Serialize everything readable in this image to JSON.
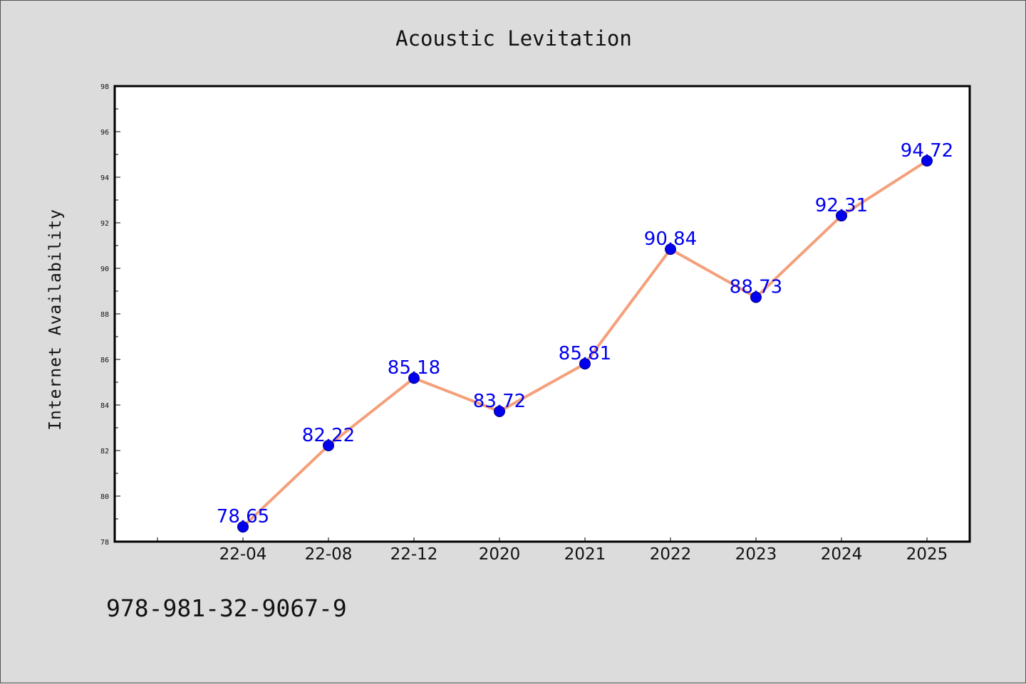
{
  "chart_data": {
    "type": "line",
    "title": "Acoustic Levitation",
    "ylabel": "Internet Availability",
    "xlabel": "",
    "categories": [
      "22-04",
      "22-08",
      "22-12",
      "2020",
      "2021",
      "2022",
      "2023",
      "2024",
      "2025"
    ],
    "series": [
      {
        "values": [
          78.65,
          82.22,
          85.18,
          83.72,
          85.81,
          90.84,
          88.73,
          92.31,
          94.72
        ],
        "data_labels": [
          "78.65",
          "82.22",
          "85.18",
          "83.72",
          "85.81",
          "90.84",
          "88.73",
          "92.31",
          "94.72"
        ]
      }
    ],
    "ylim": [
      78,
      98
    ],
    "yticks": [
      "78",
      "80",
      "82",
      "84",
      "86",
      "88",
      "90",
      "92",
      "94",
      "96",
      "98"
    ],
    "grid": false,
    "colors": {
      "line": "#f4a07a",
      "marker": "#0000ee",
      "marker_edge": "#000080",
      "label": "#0000ee",
      "plot_bg": "#ffffff",
      "page_bg": "#dcdcdc"
    }
  },
  "footer_text": "978-981-32-9067-9"
}
